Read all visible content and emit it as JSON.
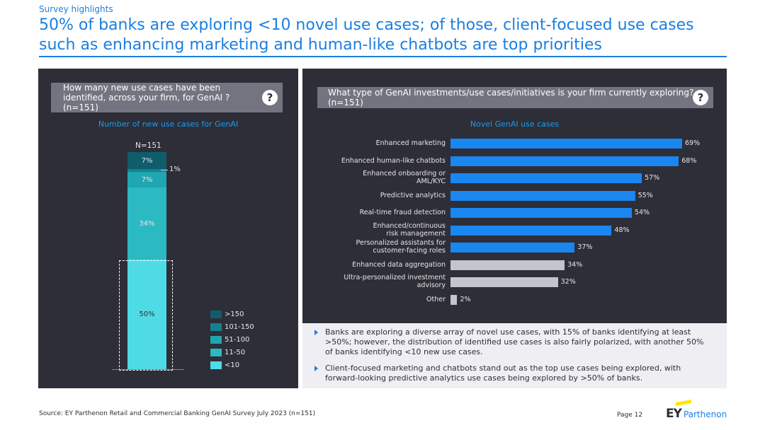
{
  "header": {
    "eyebrow": "Survey highlights",
    "title": "50% of banks are exploring <10 novel use cases; of those, client-focused use cases such as enhancing marketing and human-like chatbots are top priorities"
  },
  "left_panel": {
    "question": "How many new use cases have been identified, across your firm, for GenAI ? (n=151)",
    "help_icon": "?",
    "chart_title": "Number of new use cases for GenAI",
    "n_label": "N=151",
    "small_callout": "1%"
  },
  "right_panel": {
    "question": "What type of GenAI investments/use cases/initiatives is your firm currently exploring? (n=151)",
    "help_icon": "?",
    "chart_title": "Novel GenAI use cases"
  },
  "chart_data": [
    {
      "type": "bar",
      "orientation": "stacked-vertical",
      "title": "Number of new use cases for GenAI",
      "n": "N=151",
      "categories": [
        "<10",
        "11-50",
        "51-100",
        "101-150",
        ">150"
      ],
      "values": [
        50,
        34,
        7,
        1,
        7
      ],
      "value_labels": [
        "50%",
        "34%",
        "7%",
        "1%",
        "7%"
      ],
      "legend": [
        ">150",
        "101-150",
        "51-100",
        "11-50",
        "<10"
      ],
      "colors": {
        ">150": "#0f5c6a",
        "101-150": "#14818f",
        "51-100": "#1fa6b0",
        "11-50": "#2bb9c2",
        "<10": "#4fdbe6"
      }
    },
    {
      "type": "bar",
      "orientation": "horizontal",
      "title": "Novel GenAI use cases",
      "categories": [
        "Enhanced marketing",
        "Enhanced human-like chatbots",
        "Enhanced onboarding or\nAML/KYC",
        "Predictive analytics",
        "Real-time fraud detection",
        "Enhanced/continuous\nrisk management",
        "Personalized assistants for\ncustomer-facing roles",
        "Enhanced data aggregation",
        "Ultra-personalized investment\nadvisory",
        "Other"
      ],
      "values": [
        69,
        68,
        57,
        55,
        54,
        48,
        37,
        34,
        32,
        2
      ],
      "value_labels": [
        "69%",
        "68%",
        "57%",
        "55%",
        "54%",
        "48%",
        "37%",
        "34%",
        "32%",
        "2%"
      ],
      "highlight": [
        true,
        true,
        true,
        true,
        true,
        true,
        true,
        false,
        false,
        false
      ],
      "colors": {
        "highlight": "#1a86f0",
        "other": "#c4c4cd"
      },
      "xlim": [
        0,
        100
      ]
    }
  ],
  "bullets": [
    "Banks are exploring a diverse array of novel use cases, with 15% of banks identifying at least >50%; however, the distribution of identified use cases is also fairly polarized, with another 50% of banks identifying <10 new use cases.",
    "Client-focused marketing and chatbots stand out as the top use cases being explored, with forward-looking predictive analytics use cases being explored by >50% of banks."
  ],
  "footer": {
    "source": "Source: EY Parthenon Retail and Commercial Banking GenAI Survey July 2023 (n=151)",
    "page": "Page 12",
    "logo_ey": "EY",
    "logo_parthenon": "Parthenon"
  }
}
